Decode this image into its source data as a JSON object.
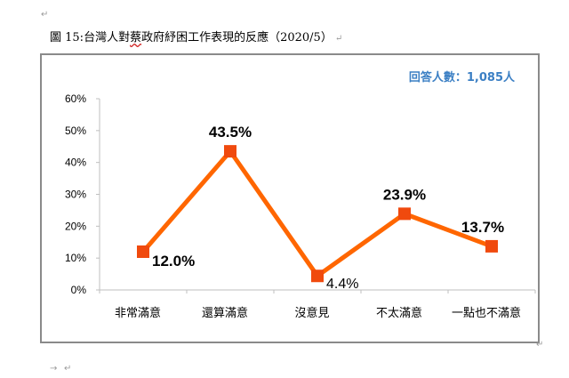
{
  "document": {
    "figure_label": "圖 15:",
    "title_before": "台灣人對",
    "title_wavy": "蔡",
    "title_after": "政府紓困工作表現的反應（2020/5）",
    "return_mark": "↵",
    "arrow_mark": "→"
  },
  "chart_data": {
    "type": "line",
    "title": "",
    "annotation": "回答人數：1,085人",
    "categories": [
      "非常滿意",
      "還算滿意",
      "沒意見",
      "不太滿意",
      "一點也不滿意"
    ],
    "values": [
      12.0,
      43.5,
      4.4,
      23.9,
      13.7
    ],
    "value_labels": [
      "12.0%",
      "43.5%",
      "4.4%",
      "23.9%",
      "13.7%"
    ],
    "yticks": [
      "0%",
      "10%",
      "20%",
      "30%",
      "40%",
      "50%",
      "60%"
    ],
    "ylim": [
      0,
      60
    ],
    "ystep": 10,
    "grid": false,
    "legend": "none",
    "line_color": "#FF6600",
    "marker_color": "#F04A0E",
    "axis_color": "#BFBFBF"
  }
}
